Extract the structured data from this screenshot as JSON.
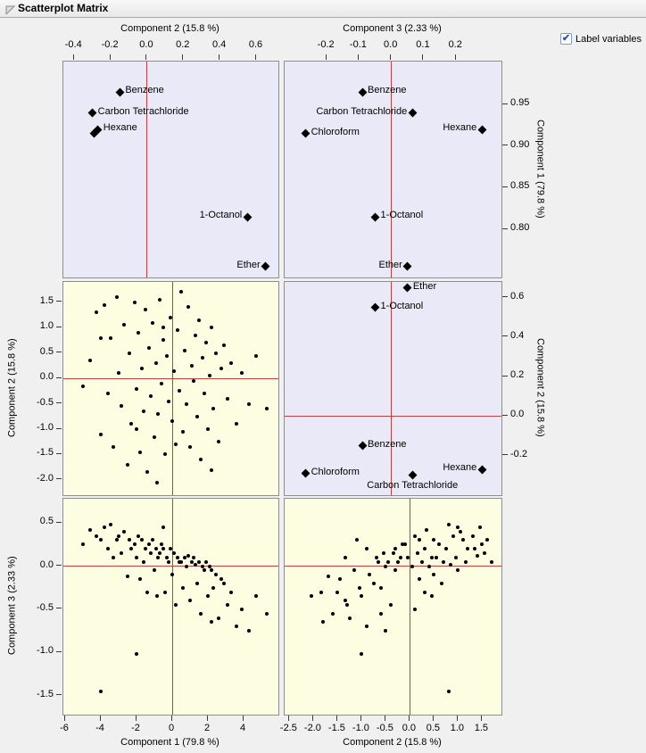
{
  "window": {
    "title": "Scatterplot Matrix"
  },
  "controls": {
    "label_variables": "Label variables",
    "checked": true,
    "check_glyph": "✔"
  },
  "chart_data": {
    "type": "scatter",
    "title": "Scatterplot Matrix",
    "colors": {
      "loadings_bg": "#E9E9F7",
      "scores_bg": "#FDFDE2",
      "ref_line": "#C04040",
      "point": "#000000"
    },
    "loadings": [
      {
        "name": "Benzene",
        "c1": 0.965,
        "c2": -0.15,
        "c3": -0.09
      },
      {
        "name": "Carbon Tetrachloride",
        "c1": 0.94,
        "c2": -0.3,
        "c3": 0.065
      },
      {
        "name": "Hexane",
        "c1": 0.92,
        "c2": -0.27,
        "c3": 0.28
      },
      {
        "name": "Chloroform",
        "c1": 0.915,
        "c2": -0.29,
        "c3": -0.265
      },
      {
        "name": "1-Octanol",
        "c1": 0.815,
        "c2": 0.55,
        "c3": -0.05
      },
      {
        "name": "Ether",
        "c1": 0.755,
        "c2": 0.65,
        "c3": 0.05
      }
    ],
    "scores": [
      [
        -5.0,
        -0.15,
        0.25
      ],
      [
        -4.6,
        0.35,
        0.42
      ],
      [
        -4.25,
        1.3,
        0.35
      ],
      [
        -4.0,
        -1.1,
        0.3
      ],
      [
        -3.8,
        1.45,
        0.45
      ],
      [
        -3.6,
        -0.3,
        0.2
      ],
      [
        -3.45,
        0.8,
        0.48
      ],
      [
        -3.3,
        -1.35,
        0.1
      ],
      [
        -3.1,
        1.6,
        0.3
      ],
      [
        -3.0,
        0.1,
        0.35
      ],
      [
        -2.85,
        -0.55,
        0.15
      ],
      [
        -2.7,
        1.05,
        0.4
      ],
      [
        -2.5,
        -1.7,
        -0.12
      ],
      [
        -2.4,
        0.5,
        0.3
      ],
      [
        -2.3,
        -0.9,
        0.2
      ],
      [
        -2.1,
        1.5,
        0.25
      ],
      [
        -2.0,
        -0.2,
        0.1
      ],
      [
        -1.9,
        0.9,
        0.35
      ],
      [
        -1.8,
        -1.45,
        -0.15
      ],
      [
        -1.7,
        0.2,
        0.3
      ],
      [
        -1.6,
        -0.65,
        0.05
      ],
      [
        -1.5,
        1.35,
        0.2
      ],
      [
        -1.4,
        -1.85,
        -0.3
      ],
      [
        -1.3,
        0.6,
        0.25
      ],
      [
        -1.2,
        -0.35,
        0.15
      ],
      [
        -1.1,
        1.1,
        0.3
      ],
      [
        -1.0,
        -1.15,
        -0.05
      ],
      [
        -0.9,
        0.3,
        0.2
      ],
      [
        -0.85,
        -2.05,
        -0.35
      ],
      [
        -0.8,
        -0.7,
        0.1
      ],
      [
        -0.7,
        1.55,
        0.15
      ],
      [
        -0.6,
        -0.1,
        0.25
      ],
      [
        -0.5,
        0.75,
        0.2
      ],
      [
        -0.4,
        -1.5,
        -0.3
      ],
      [
        -0.3,
        0.45,
        0.1
      ],
      [
        -0.2,
        -0.45,
        0.05
      ],
      [
        -0.1,
        1.2,
        0.2
      ],
      [
        0.0,
        -0.85,
        -0.1
      ],
      [
        0.1,
        0.15,
        0.15
      ],
      [
        0.3,
        0.95,
        0.1
      ],
      [
        0.4,
        -0.25,
        0.05
      ],
      [
        0.5,
        1.7,
        0.05
      ],
      [
        0.6,
        -1.05,
        -0.25
      ],
      [
        0.7,
        0.55,
        0.1
      ],
      [
        0.8,
        -0.5,
        0.0
      ],
      [
        0.9,
        1.4,
        0.12
      ],
      [
        1.0,
        -1.35,
        -0.4
      ],
      [
        1.1,
        0.25,
        0.05
      ],
      [
        1.2,
        -0.05,
        0.1
      ],
      [
        1.3,
        0.85,
        0.02
      ],
      [
        1.4,
        -0.75,
        -0.2
      ],
      [
        1.5,
        1.15,
        0.05
      ],
      [
        1.6,
        -1.6,
        -0.55
      ],
      [
        1.7,
        0.4,
        0.0
      ],
      [
        1.8,
        -0.3,
        -0.05
      ],
      [
        1.9,
        0.7,
        0.05
      ],
      [
        2.0,
        -1.0,
        -0.35
      ],
      [
        2.1,
        0.05,
        0.0
      ],
      [
        2.2,
        1.0,
        -0.05
      ],
      [
        2.3,
        -0.6,
        -0.25
      ],
      [
        2.45,
        0.5,
        -0.1
      ],
      [
        2.6,
        -1.25,
        -0.6
      ],
      [
        2.75,
        0.2,
        -0.15
      ],
      [
        2.9,
        0.65,
        -0.2
      ],
      [
        3.1,
        -0.4,
        -0.45
      ],
      [
        3.3,
        0.3,
        -0.3
      ],
      [
        3.6,
        -0.9,
        -0.7
      ],
      [
        3.9,
        0.1,
        -0.5
      ],
      [
        4.3,
        -0.5,
        -0.75
      ],
      [
        4.7,
        0.45,
        -0.35
      ],
      [
        5.3,
        -0.6,
        -0.55
      ],
      [
        -4.0,
        0.8,
        -1.45
      ],
      [
        -2.0,
        -1.0,
        -1.02
      ],
      [
        0.2,
        -1.3,
        -0.45
      ],
      [
        2.2,
        -1.8,
        -0.65
      ],
      [
        -0.5,
        1.0,
        0.45
      ]
    ],
    "plots": [
      {
        "id": "p11",
        "kind": "loadings",
        "x": "c2",
        "y": "c1",
        "xlim": [
          -0.46,
          0.72
        ],
        "ylim": [
          0.742,
          1.002
        ],
        "ref": {
          "v": 0
        },
        "x_axis": {
          "side": "top",
          "title": "Component 2  (15.8 %)",
          "ticks": [
            -0.4,
            -0.2,
            0,
            0.2,
            0.4,
            0.6
          ],
          "labels": [
            "-0.4",
            "-0.2",
            "0.0",
            "0.2",
            "0.4",
            "0.6"
          ]
        },
        "label_sides": {
          "Benzene": "right",
          "Carbon Tetrachloride": "right",
          "Hexane": "right",
          "Chloroform": null,
          "1-Octanol": "left",
          "Ether": "left"
        }
      },
      {
        "id": "p12",
        "kind": "loadings",
        "x": "c3",
        "y": "c1",
        "xlim": [
          -0.33,
          0.34
        ],
        "ylim": [
          0.742,
          1.002
        ],
        "ref": {
          "v": 0
        },
        "x_axis": {
          "side": "top",
          "title": "Component 3  (2.33 %)",
          "ticks": [
            -0.2,
            -0.1,
            0,
            0.1,
            0.2
          ],
          "labels": [
            "-0.2",
            "-0.1",
            "0.0",
            "0.1",
            "0.2"
          ]
        },
        "y_axis": {
          "side": "right",
          "title": "Component 1  (79.8 %)",
          "ticks": [
            0.95,
            0.9,
            0.85,
            0.8
          ],
          "labels": [
            "0.95",
            "0.90",
            "0.85",
            "0.80"
          ]
        },
        "label_sides": {
          "Benzene": "right",
          "Carbon Tetrachloride": "left",
          "Hexane": "left",
          "Chloroform": "right",
          "1-Octanol": "right",
          "Ether": "left"
        }
      },
      {
        "id": "p21",
        "kind": "scores",
        "x": 0,
        "y": 1,
        "xlim": [
          -6.1,
          5.95
        ],
        "ylim": [
          -2.3,
          1.9
        ],
        "ref": {
          "v": 0,
          "h": 0
        },
        "y_axis": {
          "side": "left",
          "title": "Component 2  (15.8 %)",
          "ticks": [
            1.5,
            1.0,
            0.5,
            0.0,
            -0.5,
            -1.0,
            -1.5,
            -2.0
          ],
          "labels": [
            "1.5",
            "1.0",
            "0.5",
            "0.0",
            "-0.5",
            "-1.0",
            "-1.5",
            "-2.0"
          ]
        }
      },
      {
        "id": "p22",
        "kind": "loadings",
        "x": "c3",
        "y": "c2",
        "xlim": [
          -0.33,
          0.34
        ],
        "ylim": [
          -0.4,
          0.68
        ],
        "ref": {
          "v": 0,
          "h": 0
        },
        "y_axis": {
          "side": "right",
          "title": "Component 2  (15.8 %)",
          "ticks": [
            0.6,
            0.4,
            0.2,
            0.0,
            -0.2
          ],
          "labels": [
            "0.6",
            "0.4",
            "0.2",
            "0.0",
            "-0.2"
          ]
        },
        "label_sides": {
          "Ether": "right",
          "1-Octanol": "right",
          "Benzene": "right",
          "Chloroform": "right",
          "Carbon Tetrachloride": "below",
          "Hexane": "left"
        }
      },
      {
        "id": "p31",
        "kind": "scores",
        "x": 0,
        "y": 2,
        "xlim": [
          -6.1,
          5.95
        ],
        "ylim": [
          -1.72,
          0.78
        ],
        "ref": {
          "v": 0,
          "h": 0
        },
        "x_axis": {
          "side": "bottom",
          "title": "Component 1  (79.8 %)",
          "ticks": [
            -6,
            -4,
            -2,
            0,
            2,
            4
          ],
          "labels": [
            "-6",
            "-4",
            "-2",
            "0",
            "2",
            "4"
          ]
        },
        "y_axis": {
          "side": "left",
          "title": "Component 3  (2.33 %)",
          "ticks": [
            0.5,
            0.0,
            -0.5,
            -1.0,
            -1.5
          ],
          "labels": [
            "0.5",
            "0.0",
            "-0.5",
            "-1.0",
            "-1.5"
          ]
        }
      },
      {
        "id": "p32",
        "kind": "scores",
        "x": 1,
        "y": 2,
        "xlim": [
          -2.6,
          1.9
        ],
        "ylim": [
          -1.72,
          0.78
        ],
        "ref": {
          "v": 0,
          "h": 0
        },
        "x_axis": {
          "side": "bottom",
          "title": "Component 2  (15.8 %)",
          "ticks": [
            -2.5,
            -2.0,
            -1.5,
            -1.0,
            -0.5,
            0.0,
            0.5,
            1.0,
            1.5
          ],
          "labels": [
            "-2.5",
            "-2.0",
            "-1.5",
            "-1.0",
            "-0.5",
            "0.0",
            "0.5",
            "1.0",
            "1.5"
          ]
        }
      }
    ]
  }
}
